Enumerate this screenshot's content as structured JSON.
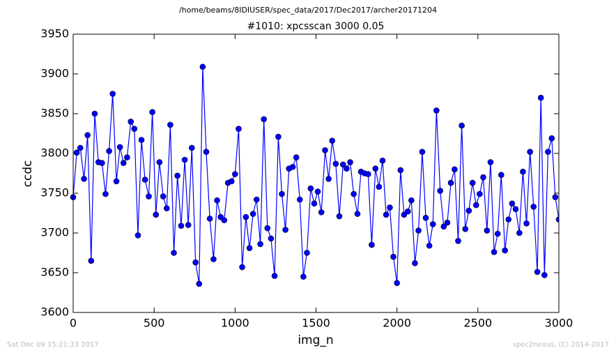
{
  "chart_data": {
    "type": "line",
    "suptitle": "/home/beams/8IDIUSER/spec_data/2017/Dec2017/archer20171204",
    "title": "#1010: xpcsscan 3000 0.05",
    "x_label": "img_n",
    "y_label": "ccdc",
    "xlim": [
      0,
      3000
    ],
    "ylim": [
      3600,
      3950
    ],
    "xticks": [
      0,
      500,
      1000,
      1500,
      2000,
      2500,
      3000
    ],
    "yticks": [
      3600,
      3650,
      3700,
      3750,
      3800,
      3850,
      3900,
      3950
    ],
    "grid": false,
    "x": [
      0,
      22,
      44,
      67,
      89,
      111,
      133,
      156,
      178,
      200,
      222,
      244,
      267,
      289,
      311,
      333,
      356,
      378,
      400,
      422,
      444,
      467,
      489,
      511,
      533,
      556,
      578,
      600,
      622,
      644,
      667,
      689,
      711,
      733,
      756,
      778,
      800,
      822,
      844,
      867,
      889,
      911,
      933,
      956,
      978,
      1000,
      1022,
      1044,
      1067,
      1089,
      1111,
      1133,
      1156,
      1178,
      1200,
      1222,
      1244,
      1267,
      1289,
      1311,
      1333,
      1356,
      1378,
      1400,
      1422,
      1444,
      1467,
      1489,
      1511,
      1533,
      1556,
      1578,
      1600,
      1622,
      1644,
      1667,
      1689,
      1711,
      1733,
      1756,
      1778,
      1800,
      1822,
      1844,
      1867,
      1889,
      1911,
      1933,
      1956,
      1978,
      2000,
      2022,
      2044,
      2067,
      2089,
      2111,
      2133,
      2156,
      2178,
      2200,
      2222,
      2244,
      2267,
      2289,
      2311,
      2333,
      2356,
      2378,
      2400,
      2422,
      2444,
      2467,
      2489,
      2511,
      2533,
      2556,
      2578,
      2600,
      2622,
      2644,
      2667,
      2689,
      2711,
      2733,
      2756,
      2778,
      2800,
      2822,
      2844,
      2867,
      2889,
      2911,
      2933,
      2956,
      2978,
      3000
    ],
    "series": [
      {
        "color": "#0000ff",
        "values": [
          3745,
          3801,
          3807,
          3768,
          3823,
          3665,
          3850,
          3789,
          3788,
          3749,
          3803,
          3875,
          3765,
          3808,
          3788,
          3795,
          3840,
          3831,
          3697,
          3817,
          3767,
          3746,
          3852,
          3723,
          3789,
          3746,
          3731,
          3836,
          3675,
          3772,
          3709,
          3792,
          3710,
          3807,
          3663,
          3636,
          3909,
          3802,
          3718,
          3667,
          3741,
          3720,
          3716,
          3763,
          3765,
          3774,
          3831,
          3657,
          3720,
          3681,
          3724,
          3742,
          3686,
          3843,
          3706,
          3693,
          3646,
          3821,
          3749,
          3704,
          3781,
          3783,
          3795,
          3742,
          3645,
          3675,
          3756,
          3737,
          3752,
          3726,
          3804,
          3768,
          3816,
          3787,
          3721,
          3786,
          3781,
          3789,
          3749,
          3724,
          3777,
          3775,
          3774,
          3685,
          3781,
          3758,
          3791,
          3723,
          3732,
          3670,
          3637,
          3779,
          3723,
          3727,
          3741,
          3662,
          3703,
          3802,
          3719,
          3684,
          3711,
          3854,
          3753,
          3708,
          3713,
          3763,
          3780,
          3690,
          3835,
          3705,
          3728,
          3763,
          3735,
          3749,
          3770,
          3703,
          3789,
          3676,
          3699,
          3773,
          3678,
          3717,
          3737,
          3730,
          3700,
          3777,
          3712,
          3802,
          3733,
          3651,
          3870,
          3647,
          3802,
          3819,
          3745,
          3717
        ]
      }
    ],
    "footer_left": "Sat Dec 09 15:21:33 2017",
    "footer_right": "spec2nexus, (C) 2014-2017"
  }
}
